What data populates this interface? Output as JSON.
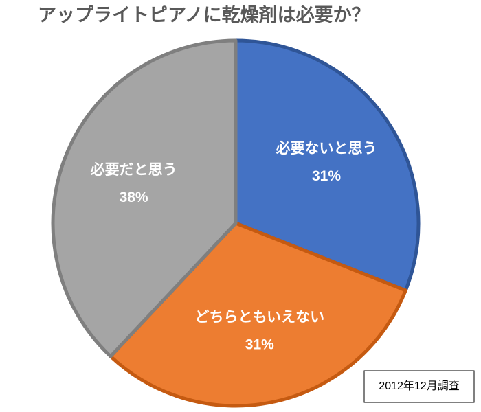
{
  "chart_data": {
    "type": "pie",
    "title": "アップライトピアノに乾燥剤は必要か？",
    "categories": [
      "必要ないと思う",
      "どちらともいえない",
      "必要だと思う"
    ],
    "values": [
      31,
      31,
      38
    ],
    "value_labels": [
      "31%",
      "31%",
      "38%"
    ],
    "colors": [
      "#4472c4",
      "#ed7d31",
      "#a5a5a5"
    ],
    "edge_colors": [
      "#2f5597",
      "#c55a11",
      "#7f7f7f"
    ],
    "annotation": "2012年12月調査"
  }
}
